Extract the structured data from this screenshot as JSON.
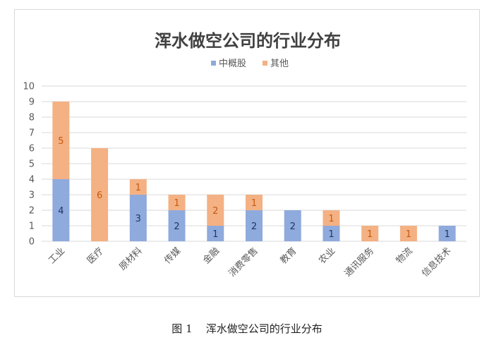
{
  "chart_data": {
    "type": "bar",
    "stacked": true,
    "title": "浑水做空公司的行业分布",
    "xlabel": "",
    "ylabel": "",
    "ylim": [
      0,
      10
    ],
    "y_ticks": [
      0,
      1,
      2,
      3,
      4,
      5,
      6,
      7,
      8,
      9,
      10
    ],
    "grid": true,
    "legend_position": "top",
    "categories": [
      "工业",
      "医疗",
      "原材料",
      "传媒",
      "金融",
      "消费零售",
      "教育",
      "农业",
      "通讯服务",
      "物流",
      "信息技术"
    ],
    "series": [
      {
        "name": "中概股",
        "color": "#8faadc",
        "values": [
          4,
          0,
          3,
          2,
          1,
          2,
          2,
          1,
          0,
          0,
          1
        ],
        "label_color": "#1f3864"
      },
      {
        "name": "其他",
        "color": "#f4b183",
        "values": [
          5,
          6,
          1,
          1,
          2,
          1,
          0,
          1,
          1,
          1,
          0
        ],
        "label_color": "#c55a11"
      }
    ]
  },
  "caption": {
    "figure_number": "图 1",
    "text": "浑水做空公司的行业分布"
  }
}
